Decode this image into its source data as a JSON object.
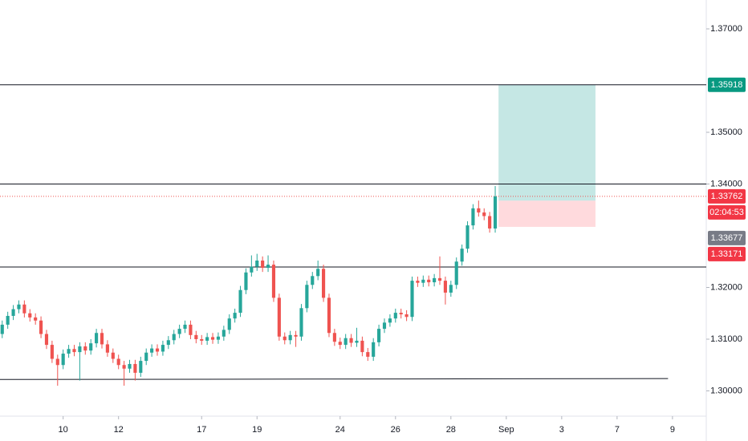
{
  "chart_data": {
    "type": "candlestick",
    "up_color": "#26a69a",
    "down_color": "#ef5350",
    "open": [
      1.311,
      1.3128,
      1.3145,
      1.3158,
      1.3167,
      1.315,
      1.3142,
      1.3136,
      1.311,
      1.3089,
      1.3062,
      1.305,
      1.3072,
      1.3081,
      1.3075,
      1.3086,
      1.3078,
      1.3092,
      1.3112,
      1.309,
      1.3074,
      1.3062,
      1.305,
      1.3043,
      1.3052,
      1.3035,
      1.3058,
      1.3074,
      1.3082,
      1.3076,
      1.3089,
      1.3098,
      1.311,
      1.312,
      1.3128,
      1.3108,
      1.31,
      1.3097,
      1.3104,
      1.3099,
      1.3105,
      1.3118,
      1.314,
      1.3151,
      1.3195,
      1.3229,
      1.324,
      1.3252,
      1.3238,
      1.3244,
      1.318,
      1.3105,
      1.3098,
      1.3108,
      1.3105,
      1.316,
      1.3205,
      1.3222,
      1.3236,
      1.318,
      1.3112,
      1.3095,
      1.3089,
      1.3102,
      1.3093,
      1.3097,
      1.3075,
      1.3066,
      1.3094,
      1.312,
      1.3132,
      1.314,
      1.3151,
      1.3148,
      1.3143,
      1.3213,
      1.3209,
      1.3215,
      1.321,
      1.3218,
      1.3213,
      1.319,
      1.3205,
      1.325,
      1.3275,
      1.332,
      1.3353,
      1.3345,
      1.3338,
      1.3314
    ],
    "high": [
      1.3136,
      1.3153,
      1.3166,
      1.3175,
      1.3175,
      1.3158,
      1.315,
      1.3144,
      1.3118,
      1.3097,
      1.307,
      1.308,
      1.3089,
      1.3089,
      1.3094,
      1.3094,
      1.31,
      1.312,
      1.312,
      1.3098,
      1.3082,
      1.307,
      1.3058,
      1.306,
      1.306,
      1.3066,
      1.3082,
      1.309,
      1.309,
      1.3097,
      1.3106,
      1.3118,
      1.3128,
      1.3136,
      1.3136,
      1.3116,
      1.3108,
      1.3112,
      1.3112,
      1.3113,
      1.3126,
      1.3148,
      1.3159,
      1.3203,
      1.3237,
      1.3262,
      1.3265,
      1.326,
      1.3262,
      1.3252,
      1.3188,
      1.3113,
      1.3116,
      1.3116,
      1.3168,
      1.3213,
      1.323,
      1.3252,
      1.3244,
      1.3188,
      1.312,
      1.3103,
      1.311,
      1.311,
      1.3122,
      1.3105,
      1.3083,
      1.3102,
      1.3128,
      1.314,
      1.3148,
      1.3159,
      1.3159,
      1.3156,
      1.3221,
      1.3221,
      1.3223,
      1.3223,
      1.3226,
      1.326,
      1.3221,
      1.3213,
      1.3258,
      1.3283,
      1.3328,
      1.3361,
      1.3368,
      1.3353,
      1.3346,
      1.3396
    ],
    "low": [
      1.3102,
      1.312,
      1.3137,
      1.315,
      1.3142,
      1.3134,
      1.3128,
      1.3102,
      1.3081,
      1.3054,
      1.301,
      1.3042,
      1.3064,
      1.3067,
      1.302,
      1.307,
      1.307,
      1.3084,
      1.3082,
      1.3066,
      1.3054,
      1.3042,
      1.301,
      1.3035,
      1.302,
      1.3027,
      1.305,
      1.3066,
      1.3068,
      1.3068,
      1.3081,
      1.309,
      1.3102,
      1.3112,
      1.31,
      1.3092,
      1.3089,
      1.3089,
      1.3091,
      1.3091,
      1.3097,
      1.311,
      1.3132,
      1.3143,
      1.3187,
      1.3221,
      1.3232,
      1.323,
      1.323,
      1.3172,
      1.3097,
      1.309,
      1.309,
      1.3085,
      1.3097,
      1.3152,
      1.3197,
      1.3214,
      1.3172,
      1.3104,
      1.3087,
      1.3081,
      1.3081,
      1.3085,
      1.3085,
      1.3067,
      1.3058,
      1.3058,
      1.3086,
      1.3112,
      1.3124,
      1.3132,
      1.314,
      1.3135,
      1.3135,
      1.3201,
      1.3201,
      1.3202,
      1.3202,
      1.3205,
      1.3167,
      1.3182,
      1.3197,
      1.3242,
      1.3267,
      1.3312,
      1.3337,
      1.333,
      1.3306,
      1.3306
    ],
    "close": [
      1.3128,
      1.3145,
      1.3158,
      1.3167,
      1.315,
      1.3142,
      1.3136,
      1.311,
      1.3089,
      1.3062,
      1.305,
      1.3072,
      1.3081,
      1.3075,
      1.3086,
      1.3078,
      1.3092,
      1.3112,
      1.309,
      1.3074,
      1.3062,
      1.305,
      1.3043,
      1.3052,
      1.3035,
      1.3058,
      1.3074,
      1.3082,
      1.3076,
      1.3089,
      1.3098,
      1.311,
      1.312,
      1.3128,
      1.3108,
      1.31,
      1.3097,
      1.3104,
      1.3099,
      1.3105,
      1.3118,
      1.314,
      1.3151,
      1.3195,
      1.3229,
      1.324,
      1.3252,
      1.3238,
      1.3244,
      1.318,
      1.3105,
      1.3098,
      1.3108,
      1.3105,
      1.316,
      1.3205,
      1.3222,
      1.3236,
      1.318,
      1.3112,
      1.3095,
      1.3089,
      1.3102,
      1.3093,
      1.3097,
      1.3075,
      1.3066,
      1.3094,
      1.312,
      1.3132,
      1.314,
      1.3151,
      1.3148,
      1.3143,
      1.3213,
      1.3209,
      1.3215,
      1.321,
      1.3218,
      1.3213,
      1.319,
      1.3205,
      1.325,
      1.3275,
      1.332,
      1.3353,
      1.3345,
      1.3338,
      1.3314,
      1.3376
    ],
    "xlim": [
      -0.4,
      127.1
    ],
    "xticks": [
      {
        "value": 11,
        "label": "10"
      },
      {
        "value": 21,
        "label": "12"
      },
      {
        "value": 36,
        "label": "17"
      },
      {
        "value": 46,
        "label": "19"
      },
      {
        "value": 61,
        "label": "24"
      },
      {
        "value": 71,
        "label": "26"
      },
      {
        "value": 81,
        "label": "28"
      },
      {
        "value": 91,
        "label": "Sep"
      },
      {
        "value": 101,
        "label": "3"
      },
      {
        "value": 111,
        "label": "7"
      },
      {
        "value": 121,
        "label": "9"
      }
    ],
    "ylim": [
      1.29496,
      1.37558
    ],
    "yticks": [
      {
        "value": 1.37,
        "label": "1.37000"
      },
      {
        "value": 1.35,
        "label": "1.35000"
      },
      {
        "value": 1.34,
        "label": "1.34000"
      },
      {
        "value": 1.32,
        "label": "1.32000"
      },
      {
        "value": 1.31,
        "label": "1.31000"
      },
      {
        "value": 1.3,
        "label": "1.30000"
      }
    ],
    "lines": [
      {
        "price": 1.35918
      },
      {
        "price": 1.34
      },
      {
        "price": 1.32395
      }
    ],
    "support_line": {
      "price_start": 1.3022,
      "price_end": 1.30238,
      "x_end": 120.2
    },
    "current_price_line": {
      "price": 1.33762,
      "color": "#ef5350"
    },
    "position": {
      "entry": 1.33677,
      "target": 1.35918,
      "stop": 1.33171,
      "x_start": 89.6,
      "x_end": 107.1,
      "profit_color": "#b2dfdb",
      "loss_color": "#ffcdd2"
    },
    "price_labels": [
      {
        "value": 1.35918,
        "label": "1.35918",
        "color": "#089981"
      },
      {
        "value": 1.33762,
        "label": "1.33762",
        "color": "#f23645"
      },
      {
        "value": 1.33677,
        "label": "1.33677",
        "color": "#787b86"
      },
      {
        "value": 1.33171,
        "label": "1.33171",
        "color": "#f23645"
      }
    ],
    "countdown": "02:04:53"
  }
}
